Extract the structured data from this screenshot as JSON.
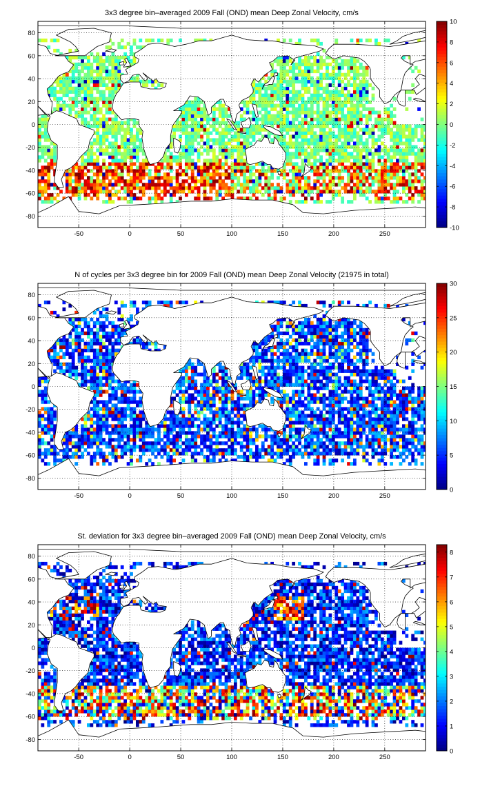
{
  "chart_data": [
    {
      "type": "heatmap",
      "title": "3x3 degree bin–averaged 2009 Fall (OND) mean Deep Zonal Velocity, cm/s",
      "xlim": [
        -90,
        290
      ],
      "ylim": [
        -90,
        90
      ],
      "xticks": [
        "-50",
        "0",
        "50",
        "100",
        "150",
        "200",
        "250"
      ],
      "yticks": [
        "80",
        "60",
        "40",
        "20",
        "0",
        "-20",
        "-40",
        "-60",
        "-80"
      ],
      "clim": [
        -10,
        10
      ],
      "colorbar_ticks": [
        "10",
        "8",
        "6",
        "4",
        "2",
        "0",
        "-2",
        "-4",
        "-6",
        "-8",
        "-10"
      ],
      "colormap": "jet",
      "grid": "dotted",
      "bin_size_deg": 3,
      "notes": "values mostly within ±2 cm/s; strong positive (eastward) bands 5–10 cm/s along 40–60S Southern Ocean"
    },
    {
      "type": "heatmap",
      "title": "N of cycles per 3x3 degree bin for 2009 Fall (OND) mean Deep Zonal Velocity (21975 in total)",
      "xlim": [
        -90,
        290
      ],
      "ylim": [
        -90,
        90
      ],
      "xticks": [
        "-50",
        "0",
        "50",
        "100",
        "150",
        "200",
        "250"
      ],
      "yticks": [
        "80",
        "60",
        "40",
        "20",
        "0",
        "-20",
        "-40",
        "-60",
        "-80"
      ],
      "clim": [
        0,
        30
      ],
      "colorbar_ticks": [
        "30",
        "25",
        "20",
        "15",
        "10",
        "5",
        "0"
      ],
      "colormap": "jet",
      "grid": "dotted",
      "bin_size_deg": 3,
      "notes": "mostly 1–10 cycles per bin, occasional bins 15–30"
    },
    {
      "type": "heatmap",
      "title": "St. deviation for 3x3 degree bin–averaged 2009 Fall (OND) mean Deep Zonal Velocity, cm/s",
      "xlim": [
        -90,
        290
      ],
      "ylim": [
        -90,
        90
      ],
      "xticks": [
        "-50",
        "0",
        "50",
        "100",
        "150",
        "200",
        "250"
      ],
      "yticks": [
        "80",
        "60",
        "40",
        "20",
        "0",
        "-20",
        "-40",
        "-60",
        "-80"
      ],
      "clim": [
        0,
        8.3
      ],
      "colorbar_ticks": [
        "8",
        "7",
        "6",
        "5",
        "4",
        "3",
        "2",
        "1",
        "0"
      ],
      "colormap": "jet",
      "grid": "dotted",
      "bin_size_deg": 3,
      "notes": "mostly 0–2 cm/s; high variability 6–8 cm/s in the Southern Ocean, Gulf Stream and Kuroshio regions"
    }
  ],
  "colors": {
    "coast": "#000000",
    "grid": "#000000",
    "background": "#ffffff"
  }
}
